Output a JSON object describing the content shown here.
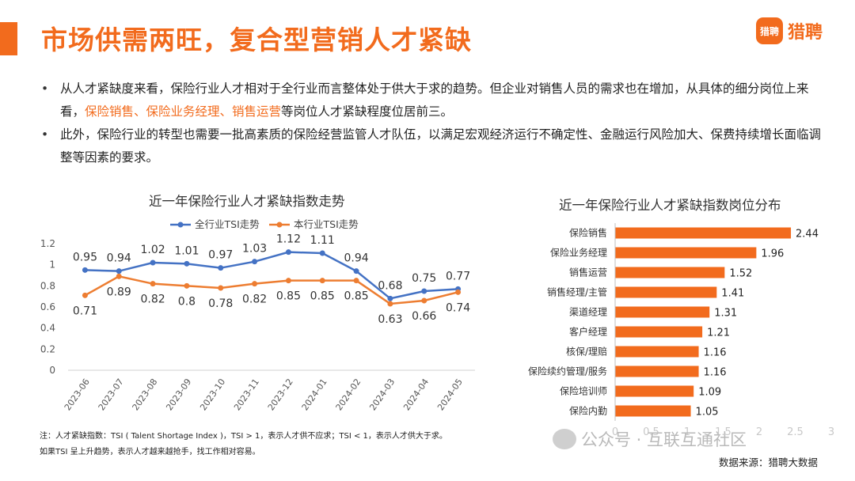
{
  "header": {
    "title": "市场供需两旺，复合型营销人才紧缺",
    "logo_badge": "猎聘",
    "logo_text": "猎聘"
  },
  "bullets": {
    "b1_part1": "从人才紧缺度来看，保险行业人才相对于全行业而言整体处于供大于求的趋势。但企业对销售人员的需求也在增加，从具体的细分岗位上来看，",
    "b1_highlight": "保险销售、保险业务经理、销售运营",
    "b1_part2": "等岗位人才紧缺程度位居前三。",
    "b2": "此外，保险行业的转型也需要一批高素质的保险经营监管人才队伍，以满足宏观经济运行不确定性、金融运行风险加大、保费持续增长面临调整等因素的要求。"
  },
  "colors": {
    "accent": "#f26b1d",
    "series_blue": "#4472c4",
    "series_orange": "#ed7d31",
    "bar": "#f26b1d"
  },
  "chart_data": [
    {
      "type": "line",
      "title": "近一年保险行业人才紧缺指数走势",
      "categories": [
        "2023-06",
        "2023-07",
        "2023-08",
        "2023-09",
        "2023-10",
        "2023-11",
        "2023-12",
        "2024-01",
        "2024-02",
        "2024-03",
        "2024-04",
        "2024-05"
      ],
      "series": [
        {
          "name": "全行业TSI走势",
          "values": [
            0.95,
            0.94,
            1.02,
            1.01,
            0.97,
            1.03,
            1.12,
            1.11,
            0.94,
            0.68,
            0.75,
            0.77
          ]
        },
        {
          "name": "本行业TSI走势",
          "values": [
            0.71,
            0.89,
            0.82,
            0.8,
            0.78,
            0.82,
            0.85,
            0.85,
            0.85,
            0.63,
            0.66,
            0.74
          ]
        }
      ],
      "ylim": [
        0,
        1.2
      ],
      "yticks": [
        "0",
        "0.2",
        "0.4",
        "0.6",
        "0.8",
        "1",
        "1.2"
      ],
      "legend": "top"
    },
    {
      "type": "bar",
      "orientation": "horizontal",
      "title": "近一年保险行业人才紧缺指数岗位分布",
      "categories": [
        "保险销售",
        "保险业务经理",
        "销售运营",
        "销售经理/主管",
        "渠道经理",
        "客户经理",
        "核保/理赔",
        "保险续约管理/服务",
        "保险培训师",
        "保险内勤"
      ],
      "values": [
        2.44,
        1.96,
        1.52,
        1.41,
        1.31,
        1.21,
        1.16,
        1.16,
        1.09,
        1.05
      ],
      "xlim": [
        0,
        3
      ],
      "xticks": [
        "0",
        "0.5",
        "1",
        "1.5",
        "2",
        "2.5",
        "3"
      ]
    }
  ],
  "footnote": {
    "line1": "注：人才紧缺指数：TSI ( Talent Shortage Index )，TSI > 1，表示人才供不应求；TSI < 1，表示人才供大于求。",
    "line2": "如果TSI 呈上升趋势，表示人才越来越抢手，找工作相对容易。"
  },
  "watermark": "公众号 · 互联互通社区",
  "source": "数据来源：猎聘大数据"
}
